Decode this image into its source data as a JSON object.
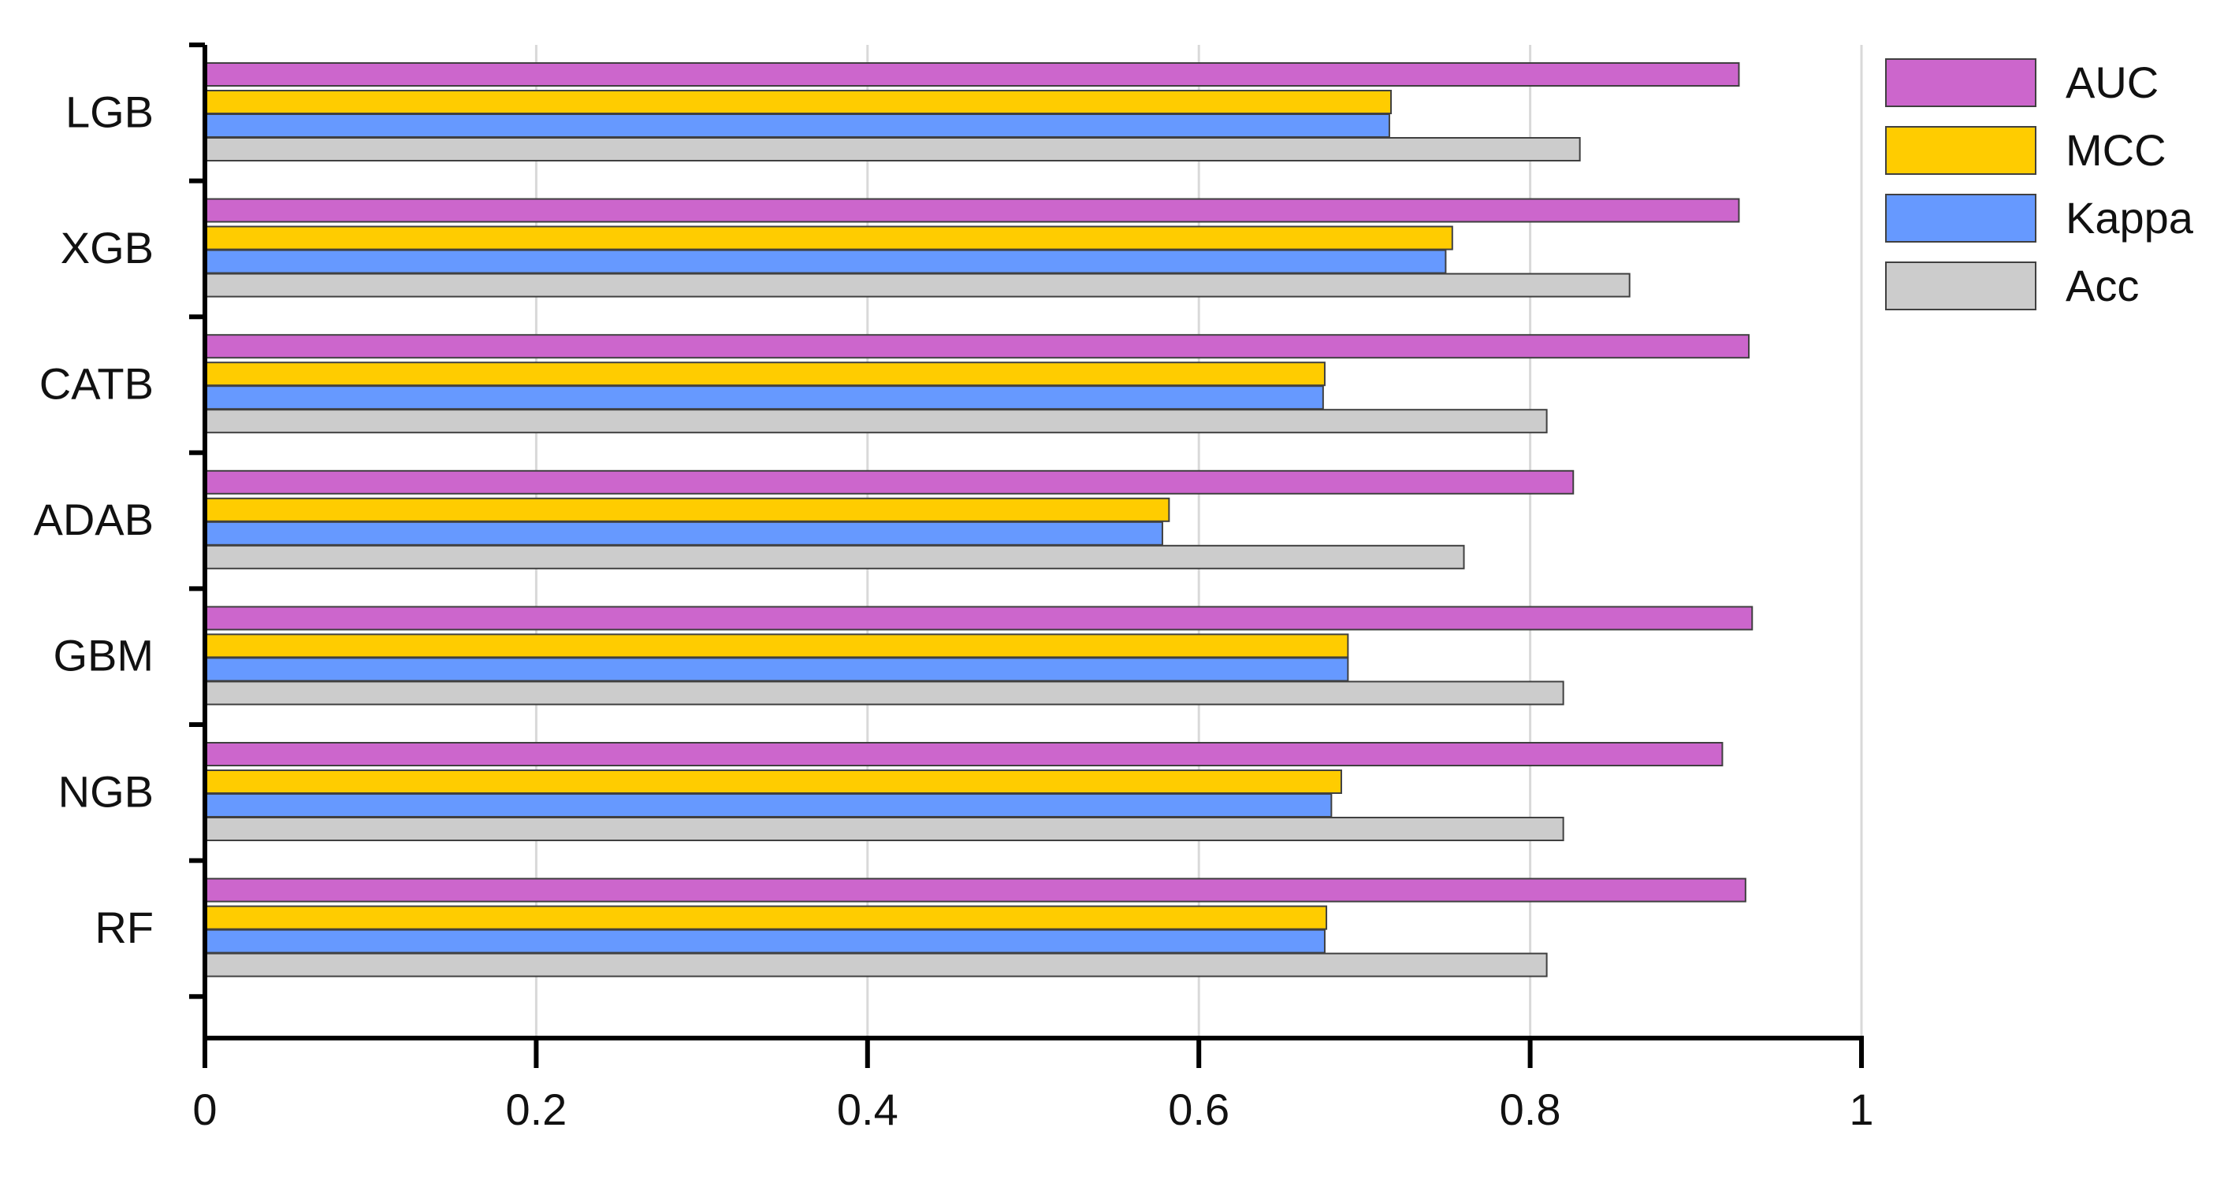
{
  "chart_data": {
    "type": "bar",
    "orientation": "horizontal",
    "title": "",
    "xlabel": "",
    "ylabel": "",
    "categories": [
      "LGB",
      "XGB",
      "CATB",
      "ADAB",
      "GBM",
      "NGB",
      "RF"
    ],
    "series": [
      {
        "name": "AUC",
        "color": "#cc66cc",
        "values": [
          0.926,
          0.926,
          0.932,
          0.826,
          0.934,
          0.916,
          0.93
        ]
      },
      {
        "name": "MCC",
        "color": "#ffcc00",
        "values": [
          0.716,
          0.753,
          0.676,
          0.582,
          0.69,
          0.686,
          0.677
        ]
      },
      {
        "name": "Kappa",
        "color": "#6699ff",
        "values": [
          0.715,
          0.749,
          0.675,
          0.578,
          0.69,
          0.68,
          0.676
        ]
      },
      {
        "name": "Acc",
        "color": "#cccccc",
        "values": [
          0.83,
          0.86,
          0.81,
          0.76,
          0.82,
          0.82,
          0.81
        ]
      }
    ],
    "xlim": [
      0,
      1
    ],
    "xticks": [
      "0",
      "0.2",
      "0.4",
      "0.6",
      "0.8",
      "1"
    ],
    "grid": true,
    "legend": {
      "position": "top-right",
      "entries": [
        "AUC",
        "MCC",
        "Kappa",
        "Acc"
      ]
    }
  }
}
